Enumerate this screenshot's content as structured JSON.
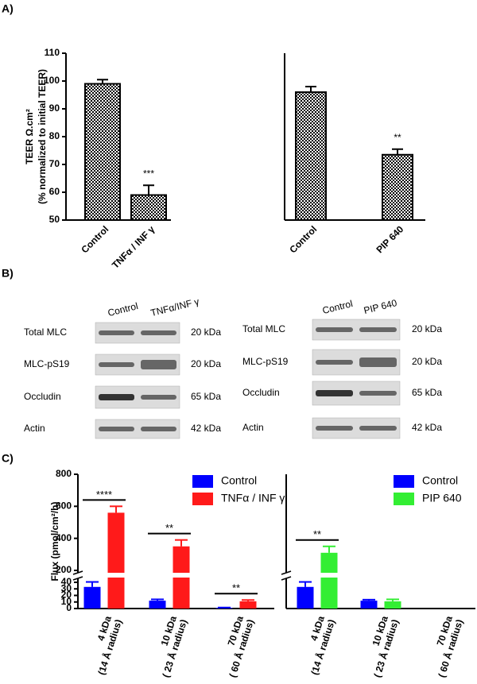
{
  "panel_labels": [
    "A)",
    "B)",
    "C)"
  ],
  "chart_data": [
    {
      "type": "bar",
      "y_label": "TEER Ω.cm²",
      "y_label_sub": "(% normalized to initial TEER)",
      "categories": [
        "Control",
        "TNFα / INF γ"
      ],
      "values": [
        99,
        59
      ],
      "errors": [
        1.5,
        3.5
      ],
      "color": "#000000",
      "fill": "checkered",
      "ylim": [
        50,
        110
      ],
      "yticks": [
        50,
        60,
        70,
        80,
        90,
        100,
        110
      ],
      "annotations": [
        {
          "text": "***",
          "category": 1
        }
      ]
    },
    {
      "type": "bar",
      "categories": [
        "Control",
        "PIP 640"
      ],
      "values": [
        96,
        73.5
      ],
      "errors": [
        2,
        2
      ],
      "color": "#000000",
      "fill": "checkered",
      "ylim": [
        50,
        110
      ],
      "annotations": [
        {
          "text": "**",
          "category": 1
        }
      ]
    },
    {
      "type": "grouped_bar",
      "y_label": "Flux (pmol/cm²/h)",
      "categories": [
        [
          "4 kDa",
          "(14 Å radius)"
        ],
        [
          "10 kDa",
          "( 23 Å radius)"
        ],
        [
          "70 kDa",
          "( 60 Å radius)"
        ]
      ],
      "series": [
        {
          "name": "Control",
          "color": "#0000ff",
          "values": [
            33,
            12,
            1
          ],
          "errors": [
            12,
            2,
            0.5
          ]
        },
        {
          "name": "TNFα / INF γ",
          "color": "#ff1a1a",
          "values": [
            560,
            350,
            11
          ],
          "errors": [
            40,
            40,
            2
          ]
        }
      ],
      "ylim": [
        0,
        800
      ],
      "ybreak": [
        40,
        200
      ],
      "yticks": [
        0,
        10,
        20,
        30,
        40,
        200,
        400,
        600,
        800
      ],
      "legend": "top-right",
      "annotations": [
        {
          "text": "****",
          "category": 0
        },
        {
          "text": "**",
          "category": 1
        },
        {
          "text": "**",
          "category": 2
        }
      ]
    },
    {
      "type": "grouped_bar",
      "categories": [
        [
          "4 kDa",
          "(14 Å radius)"
        ],
        [
          "10 kDa",
          "( 23 Å radius)"
        ],
        [
          "70 kDa",
          "( 60 Å radius)"
        ]
      ],
      "series": [
        {
          "name": "Control",
          "color": "#0000ff",
          "values": [
            33,
            12,
            null
          ],
          "errors": [
            12,
            1.5,
            null
          ]
        },
        {
          "name": "PIP 640",
          "color": "#33ee33",
          "values": [
            310,
            11,
            null
          ],
          "errors": [
            40,
            3,
            null
          ]
        }
      ],
      "ylim": [
        0,
        800
      ],
      "ybreak": [
        40,
        200
      ],
      "legend": "top-right",
      "annotations": [
        {
          "text": "**",
          "category": 0
        }
      ]
    }
  ],
  "blots": [
    {
      "lanes": [
        "Control",
        "TNFα/INF γ"
      ],
      "rows": [
        {
          "protein": "Total MLC",
          "size": "20 kDa"
        },
        {
          "protein": "MLC-pS19",
          "size": "20 kDa"
        },
        {
          "protein": "Occludin",
          "size": "65 kDa"
        },
        {
          "protein": "Actin",
          "size": "42 kDa"
        }
      ]
    },
    {
      "lanes": [
        "Control",
        "PIP 640"
      ],
      "rows": [
        {
          "protein": "Total MLC",
          "size": "20 kDa"
        },
        {
          "protein": "MLC-pS19",
          "size": "20 kDa"
        },
        {
          "protein": "Occludin",
          "size": "65 kDa"
        },
        {
          "protein": "Actin",
          "size": "42 kDa"
        }
      ]
    }
  ]
}
